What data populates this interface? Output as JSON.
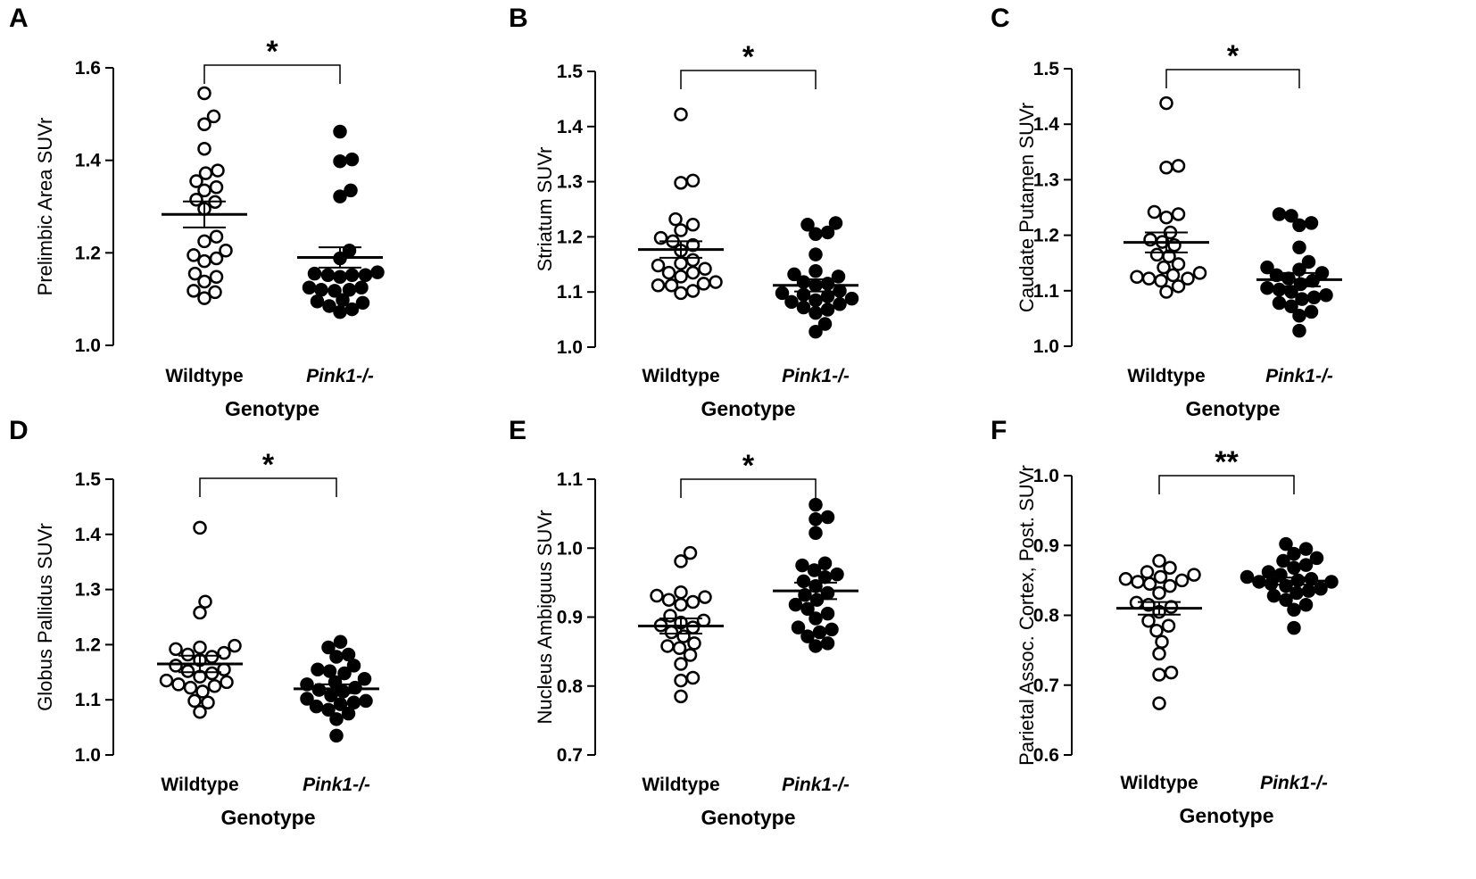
{
  "figure": {
    "x_axis_title": "Genotype",
    "groups": [
      {
        "name": "Wildtype",
        "marker": "open-circle",
        "italic": false
      },
      {
        "name": "Pink1-/-",
        "marker": "filled-circle",
        "italic": true
      }
    ]
  },
  "chart_data": [
    {
      "type": "scatter",
      "panel": "A",
      "title": "",
      "xlabel": "Genotype",
      "ylabel": "Prelimbic Area SUVr",
      "ylim": [
        1.0,
        1.6
      ],
      "yticks": [
        "1.0",
        "1.2",
        "1.4",
        "1.6"
      ],
      "categories": [
        "Wildtype",
        "Pink1-/-"
      ],
      "significance": "*",
      "series": [
        {
          "name": "Wildtype",
          "mean": 1.283,
          "sem": 0.028,
          "values": [
            1.545,
            1.495,
            1.478,
            1.425,
            1.378,
            1.372,
            1.342,
            1.355,
            1.335,
            1.315,
            1.31,
            1.295,
            1.235,
            1.225,
            1.205,
            1.195,
            1.182,
            1.188,
            1.155,
            1.148,
            1.138,
            1.118,
            1.115,
            1.102
          ]
        },
        {
          "name": "Pink1-/-",
          "mean": 1.19,
          "sem": 0.022,
          "values": [
            1.462,
            1.402,
            1.398,
            1.335,
            1.322,
            1.205,
            1.188,
            1.158,
            1.152,
            1.155,
            1.152,
            1.148,
            1.152,
            1.125,
            1.12,
            1.118,
            1.125,
            1.12,
            1.098,
            1.095,
            1.092,
            1.085,
            1.078,
            1.072
          ]
        }
      ]
    },
    {
      "type": "scatter",
      "panel": "B",
      "title": "",
      "xlabel": "Genotype",
      "ylabel": "Striatum SUVr",
      "ylim": [
        1.0,
        1.5
      ],
      "yticks": [
        "1.0",
        "1.1",
        "1.2",
        "1.3",
        "1.4",
        "1.5"
      ],
      "categories": [
        "Wildtype",
        "Pink1-/-"
      ],
      "significance": "*",
      "series": [
        {
          "name": "Wildtype",
          "mean": 1.177,
          "sem": 0.015,
          "values": [
            1.422,
            1.302,
            1.298,
            1.232,
            1.222,
            1.212,
            1.198,
            1.192,
            1.185,
            1.175,
            1.158,
            1.152,
            1.148,
            1.142,
            1.135,
            1.135,
            1.128,
            1.118,
            1.115,
            1.112,
            1.112,
            1.102,
            1.098
          ]
        },
        {
          "name": "Pink1-/-",
          "mean": 1.112,
          "sem": 0.011,
          "values": [
            1.225,
            1.222,
            1.208,
            1.205,
            1.168,
            1.138,
            1.132,
            1.128,
            1.118,
            1.115,
            1.112,
            1.102,
            1.098,
            1.095,
            1.092,
            1.088,
            1.085,
            1.082,
            1.078,
            1.072,
            1.068,
            1.062,
            1.042,
            1.028
          ]
        }
      ]
    },
    {
      "type": "scatter",
      "panel": "C",
      "title": "",
      "xlabel": "Genotype",
      "ylabel": "Caudate Putamen SUVr",
      "ylim": [
        1.0,
        1.5
      ],
      "yticks": [
        "1.0",
        "1.1",
        "1.2",
        "1.3",
        "1.4",
        "1.5"
      ],
      "categories": [
        "Wildtype",
        "Pink1-/-"
      ],
      "significance": "*",
      "series": [
        {
          "name": "Wildtype",
          "mean": 1.187,
          "sem": 0.018,
          "values": [
            1.438,
            1.325,
            1.322,
            1.242,
            1.238,
            1.232,
            1.205,
            1.192,
            1.188,
            1.182,
            1.165,
            1.162,
            1.148,
            1.142,
            1.132,
            1.128,
            1.125,
            1.122,
            1.122,
            1.118,
            1.108,
            1.098
          ]
        },
        {
          "name": "Pink1-/-",
          "mean": 1.12,
          "sem": 0.012,
          "values": [
            1.238,
            1.235,
            1.222,
            1.218,
            1.178,
            1.152,
            1.142,
            1.138,
            1.132,
            1.128,
            1.122,
            1.118,
            1.112,
            1.105,
            1.102,
            1.098,
            1.092,
            1.088,
            1.085,
            1.078,
            1.072,
            1.062,
            1.055,
            1.028
          ]
        }
      ]
    },
    {
      "type": "scatter",
      "panel": "D",
      "title": "",
      "xlabel": "Genotype",
      "ylabel": "Globus Pallidus SUVr",
      "ylim": [
        1.0,
        1.5
      ],
      "yticks": [
        "1.0",
        "1.1",
        "1.2",
        "1.3",
        "1.4",
        "1.5"
      ],
      "categories": [
        "Wildtype",
        "Pink1-/-"
      ],
      "significance": "*",
      "series": [
        {
          "name": "Wildtype",
          "mean": 1.165,
          "sem": 0.015,
          "values": [
            1.412,
            1.278,
            1.258,
            1.198,
            1.195,
            1.192,
            1.185,
            1.182,
            1.178,
            1.172,
            1.162,
            1.155,
            1.152,
            1.148,
            1.142,
            1.135,
            1.132,
            1.128,
            1.125,
            1.122,
            1.115,
            1.098,
            1.095,
            1.078
          ]
        },
        {
          "name": "Pink1-/-",
          "mean": 1.12,
          "sem": 0.008,
          "values": [
            1.205,
            1.195,
            1.182,
            1.178,
            1.162,
            1.155,
            1.152,
            1.148,
            1.138,
            1.132,
            1.128,
            1.122,
            1.118,
            1.115,
            1.108,
            1.102,
            1.098,
            1.095,
            1.092,
            1.088,
            1.082,
            1.075,
            1.065,
            1.035
          ]
        }
      ]
    },
    {
      "type": "scatter",
      "panel": "E",
      "title": "",
      "xlabel": "Genotype",
      "ylabel": "Nucleus Ambiguus SUVr",
      "ylim": [
        0.7,
        1.1
      ],
      "yticks": [
        "0.7",
        "0.8",
        "0.9",
        "1.0",
        "1.1"
      ],
      "categories": [
        "Wildtype",
        "Pink1-/-"
      ],
      "significance": "*",
      "series": [
        {
          "name": "Wildtype",
          "mean": 0.887,
          "sem": 0.011,
          "values": [
            0.993,
            0.981,
            0.936,
            0.931,
            0.929,
            0.925,
            0.922,
            0.918,
            0.902,
            0.895,
            0.892,
            0.888,
            0.885,
            0.878,
            0.872,
            0.862,
            0.858,
            0.855,
            0.845,
            0.832,
            0.812,
            0.808,
            0.785
          ]
        },
        {
          "name": "Pink1-/-",
          "mean": 0.938,
          "sem": 0.012,
          "values": [
            1.063,
            1.045,
            1.042,
            1.022,
            0.978,
            0.975,
            0.968,
            0.962,
            0.958,
            0.952,
            0.945,
            0.935,
            0.932,
            0.925,
            0.918,
            0.912,
            0.905,
            0.898,
            0.885,
            0.882,
            0.878,
            0.872,
            0.862,
            0.858
          ]
        }
      ]
    },
    {
      "type": "scatter",
      "panel": "F",
      "title": "",
      "xlabel": "Genotype",
      "ylabel": "Parietal Assoc. Cortex, Post. SUVr",
      "ylim": [
        0.6,
        1.0
      ],
      "yticks": [
        "0.6",
        "0.7",
        "0.8",
        "0.9",
        "1.0"
      ],
      "categories": [
        "Wildtype",
        "Pink1-/-"
      ],
      "significance": "**",
      "series": [
        {
          "name": "Wildtype",
          "mean": 0.81,
          "sem": 0.009,
          "values": [
            0.878,
            0.868,
            0.862,
            0.858,
            0.855,
            0.852,
            0.85,
            0.848,
            0.845,
            0.842,
            0.832,
            0.818,
            0.815,
            0.812,
            0.805,
            0.792,
            0.785,
            0.778,
            0.762,
            0.745,
            0.718,
            0.715,
            0.674
          ]
        },
        {
          "name": "Pink1-/-",
          "mean": 0.849,
          "sem": 0.005,
          "values": [
            0.902,
            0.895,
            0.888,
            0.882,
            0.878,
            0.872,
            0.868,
            0.862,
            0.858,
            0.855,
            0.852,
            0.85,
            0.848,
            0.848,
            0.845,
            0.842,
            0.838,
            0.835,
            0.832,
            0.828,
            0.822,
            0.815,
            0.808,
            0.782
          ]
        }
      ]
    }
  ]
}
